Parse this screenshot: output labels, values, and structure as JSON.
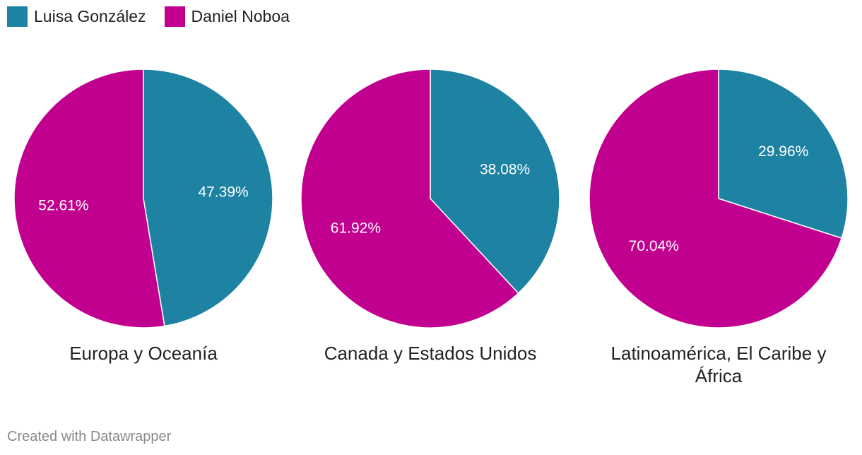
{
  "legend": [
    {
      "label": "Luisa González",
      "color": "#1e82a3"
    },
    {
      "label": "Daniel Noboa",
      "color": "#c2008f"
    }
  ],
  "chart_data": [
    {
      "type": "pie",
      "title": "Europa y Oceanía",
      "categories": [
        "Luisa González",
        "Daniel Noboa"
      ],
      "values": [
        47.39,
        52.61
      ],
      "labels": [
        "47.39%",
        "52.61%"
      ]
    },
    {
      "type": "pie",
      "title": "Canada y Estados Unidos",
      "categories": [
        "Luisa González",
        "Daniel Noboa"
      ],
      "values": [
        38.08,
        61.92
      ],
      "labels": [
        "38.08%",
        "61.92%"
      ]
    },
    {
      "type": "pie",
      "title": "Latinoamérica, El Caribe y África",
      "categories": [
        "Luisa González",
        "Daniel Noboa"
      ],
      "values": [
        29.96,
        70.04
      ],
      "labels": [
        "29.96%",
        "70.04%"
      ]
    }
  ],
  "footer": {
    "credit": "Created with Datawrapper"
  }
}
